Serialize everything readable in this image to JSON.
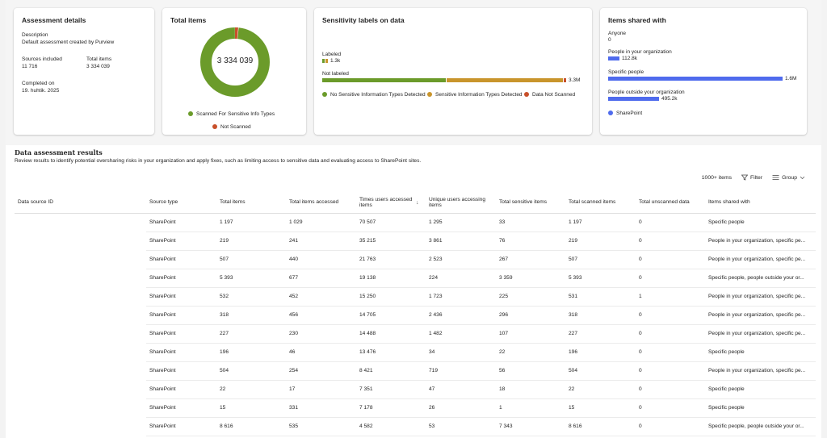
{
  "details": {
    "title": "Assessment details",
    "description_label": "Description",
    "description_value": "Default assessment created by Purview",
    "sources_label": "Sources included",
    "sources_value": "11 716",
    "total_label": "Total items",
    "total_value": "3 334 039",
    "completed_label": "Completed on",
    "completed_value": "19. huhtik. 2025"
  },
  "total_items": {
    "title": "Total items",
    "center_value": "3 334 039",
    "legend": [
      {
        "label": "Scanned For Sensitive Info Types",
        "color": "#6b9b2a"
      },
      {
        "label": "Not Scanned",
        "color": "#c8502a"
      }
    ],
    "scanned_fraction": 0.985
  },
  "sensitivity": {
    "title": "Sensitivity labels on data",
    "labeled_label": "Labeled",
    "labeled_value": "1.3k",
    "not_labeled_label": "Not labeled",
    "not_labeled_value": "3.3M",
    "legend": [
      {
        "label": "No Sensitive Information Types Detected",
        "color": "#6b9b2a"
      },
      {
        "label": "Sensitive Information Types Detected",
        "color": "#c9952c"
      },
      {
        "label": "Data Not Scanned",
        "color": "#c8502a"
      }
    ]
  },
  "shared": {
    "title": "Items shared with",
    "rows": [
      {
        "label": "Anyone",
        "value": "0",
        "fraction": 0
      },
      {
        "label": "People in your organization",
        "value": "112.8k",
        "fraction": 0.07
      },
      {
        "label": "Specific people",
        "value": "1.6M",
        "fraction": 1
      },
      {
        "label": "People outside your organization",
        "value": "495.2k",
        "fraction": 0.31
      }
    ],
    "legend": "SharePoint",
    "bar_color": "#4f6bed"
  },
  "results": {
    "title": "Data assessment results",
    "description": "Review results to identify potential oversharing risks in your organization and apply fixes, such as limiting access to sensitive data and evaluating access to SharePoint sites.",
    "count": "1000+ items",
    "filter_label": "Filter",
    "group_label": "Group",
    "columns": [
      "Data source ID",
      "Source type",
      "Total items",
      "Total items accessed",
      "Times users accessed items",
      "Unique users accessing items",
      "Total sensitive items",
      "Total scanned items",
      "Total unscanned data",
      "Items shared with"
    ],
    "rows": [
      [
        "",
        "SharePoint",
        "1 197",
        "1 029",
        "70 507",
        "1 295",
        "33",
        "1 197",
        "0",
        "Specific people"
      ],
      [
        "",
        "SharePoint",
        "219",
        "241",
        "35 215",
        "3 861",
        "76",
        "219",
        "0",
        "People in your organization, specific pe..."
      ],
      [
        "",
        "SharePoint",
        "507",
        "440",
        "21 763",
        "2 523",
        "267",
        "507",
        "0",
        "People in your organization, specific pe..."
      ],
      [
        "",
        "SharePoint",
        "5 393",
        "677",
        "19 138",
        "224",
        "3 359",
        "5 393",
        "0",
        "Specific people, people outside your or..."
      ],
      [
        "",
        "SharePoint",
        "532",
        "452",
        "15 250",
        "1 723",
        "225",
        "531",
        "1",
        "People in your organization, specific pe..."
      ],
      [
        "",
        "SharePoint",
        "318",
        "456",
        "14 705",
        "2 436",
        "296",
        "318",
        "0",
        "People in your organization, specific pe..."
      ],
      [
        "",
        "SharePoint",
        "227",
        "230",
        "14 488",
        "1 482",
        "107",
        "227",
        "0",
        "People in your organization, specific pe..."
      ],
      [
        "",
        "SharePoint",
        "196",
        "46",
        "13 476",
        "34",
        "22",
        "196",
        "0",
        "Specific people"
      ],
      [
        "",
        "SharePoint",
        "504",
        "254",
        "8 421",
        "719",
        "56",
        "504",
        "0",
        "People in your organization, specific pe..."
      ],
      [
        "",
        "SharePoint",
        "22",
        "17",
        "7 351",
        "47",
        "18",
        "22",
        "0",
        "Specific people"
      ],
      [
        "",
        "SharePoint",
        "15",
        "331",
        "7 178",
        "26",
        "1",
        "15",
        "0",
        "Specific people"
      ],
      [
        "",
        "SharePoint",
        "8 616",
        "535",
        "4 582",
        "53",
        "7 343",
        "8 616",
        "0",
        "Specific people, people outside your or..."
      ]
    ]
  }
}
